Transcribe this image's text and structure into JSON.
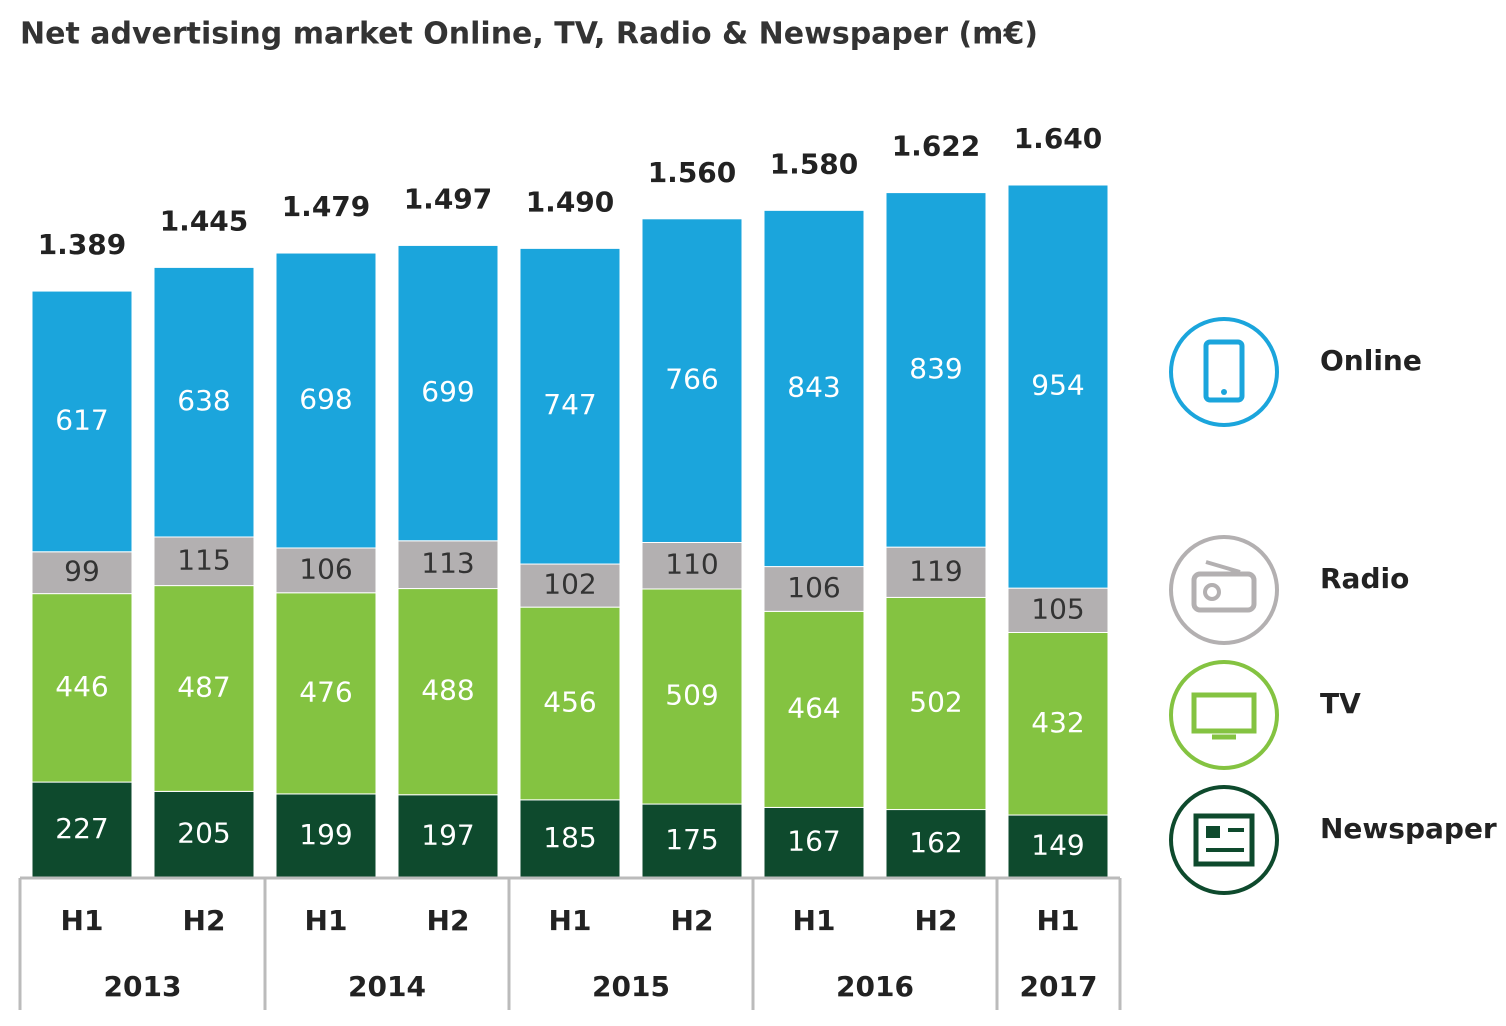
{
  "chart_data": {
    "type": "stacked_bar",
    "title": "Net advertising market Online, TV, Radio & Newspaper (m€)",
    "groups": [
      {
        "name": "2013",
        "categories": [
          "H1",
          "H2"
        ]
      },
      {
        "name": "2014",
        "categories": [
          "H1",
          "H2"
        ]
      },
      {
        "name": "2015",
        "categories": [
          "H1",
          "H2"
        ]
      },
      {
        "name": "2016",
        "categories": [
          "H1",
          "H2"
        ]
      },
      {
        "name": "2017",
        "categories": [
          "H1"
        ]
      }
    ],
    "series": [
      {
        "name": "Newspaper",
        "color": "#0e4a2d",
        "values": [
          227,
          205,
          199,
          197,
          185,
          175,
          167,
          162,
          149
        ]
      },
      {
        "name": "TV",
        "color": "#84c341",
        "values": [
          446,
          487,
          476,
          488,
          456,
          509,
          464,
          502,
          432
        ]
      },
      {
        "name": "Radio",
        "color": "#b3b0b1",
        "values": [
          99,
          115,
          106,
          113,
          102,
          110,
          106,
          119,
          105
        ]
      },
      {
        "name": "Online",
        "color": "#1ba5dc",
        "values": [
          617,
          638,
          698,
          699,
          747,
          766,
          843,
          839,
          954
        ]
      }
    ],
    "totals": {
      "values": [
        1389,
        1445,
        1479,
        1497,
        1490,
        1560,
        1580,
        1622,
        1640
      ],
      "value_labels": [
        "1.389",
        "1.445",
        "1.479",
        "1.497",
        "1.490",
        "1.560",
        "1.580",
        "1.622",
        "1.640"
      ]
    }
  }
}
